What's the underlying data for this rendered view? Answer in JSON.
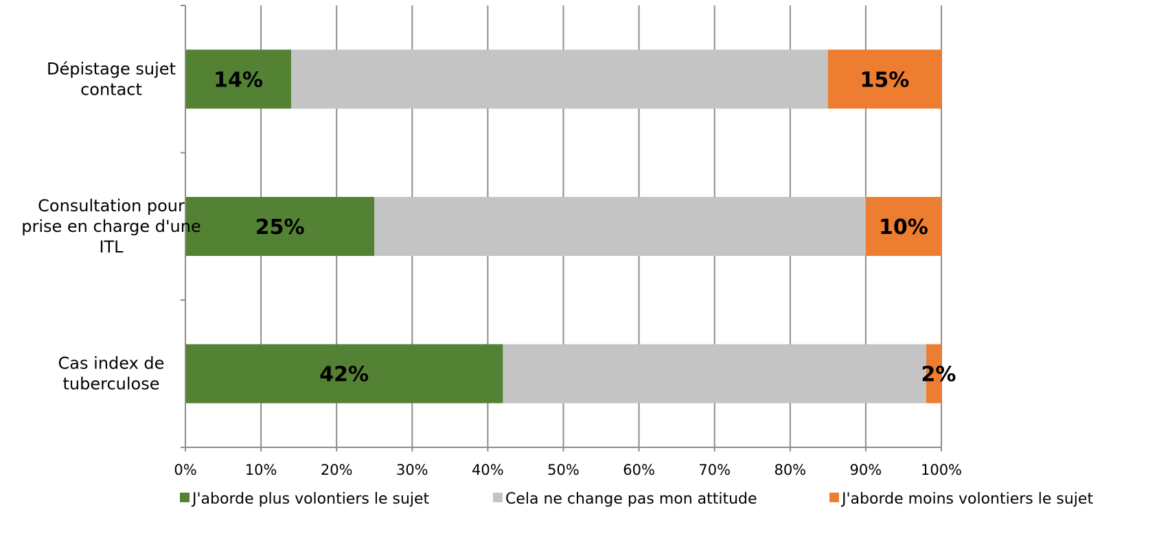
{
  "chart_data": {
    "type": "bar",
    "orientation": "horizontal",
    "stacked": "percent",
    "categories": [
      "Dépistage sujet contact",
      "Consultation pour prise en charge d'une ITL",
      "Cas index de tuberculose"
    ],
    "category_lines": [
      [
        "Dépistage sujet",
        "contact"
      ],
      [
        "Consultation pour",
        "prise en charge d'une",
        "ITL"
      ],
      [
        "Cas index de",
        "tuberculose"
      ]
    ],
    "series": [
      {
        "name": "J'aborde plus volontiers le sujet",
        "color": "#548235",
        "values": [
          14,
          25,
          42
        ],
        "labels": [
          "14%",
          "25%",
          "42%"
        ]
      },
      {
        "name": "Cela ne change pas mon attitude",
        "color": "#c4c4c4",
        "values": [
          71,
          65,
          56
        ],
        "labels": null
      },
      {
        "name": "J'aborde moins volontiers le sujet",
        "color": "#ed7d31",
        "values": [
          15,
          10,
          2
        ],
        "labels": [
          "15%",
          "10%",
          "2%"
        ]
      }
    ],
    "xlim": [
      0,
      100
    ],
    "x_ticks": [
      "0%",
      "10%",
      "20%",
      "30%",
      "40%",
      "50%",
      "60%",
      "70%",
      "80%",
      "90%",
      "100%"
    ],
    "grid": true,
    "legend_position": "bottom",
    "title": "",
    "xlabel": "",
    "ylabel": ""
  }
}
